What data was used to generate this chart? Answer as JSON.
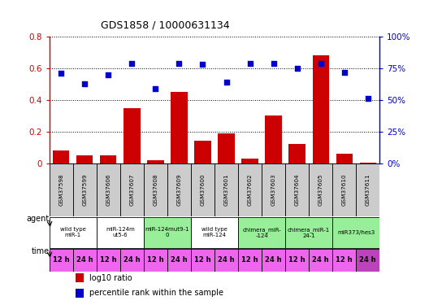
{
  "title": "GDS1858 / 10000631134",
  "samples": [
    "GSM37598",
    "GSM37599",
    "GSM37606",
    "GSM37607",
    "GSM37608",
    "GSM37609",
    "GSM37600",
    "GSM37601",
    "GSM37602",
    "GSM37603",
    "GSM37604",
    "GSM37605",
    "GSM37610",
    "GSM37611"
  ],
  "log10_ratio": [
    0.08,
    0.05,
    0.05,
    0.35,
    0.02,
    0.45,
    0.14,
    0.19,
    0.03,
    0.3,
    0.12,
    0.68,
    0.06,
    0.005
  ],
  "percentile_rank": [
    71,
    63,
    70,
    79,
    59,
    79,
    78,
    64,
    79,
    79,
    75,
    79,
    72,
    51
  ],
  "bar_color": "#cc0000",
  "scatter_color": "#0000cc",
  "ylim_left": [
    0,
    0.8
  ],
  "ylim_right": [
    0,
    100
  ],
  "yticks_left": [
    0.0,
    0.2,
    0.4,
    0.6,
    0.8
  ],
  "yticks_right": [
    0,
    25,
    50,
    75,
    100
  ],
  "yticklabels_left": [
    "0",
    "0.2",
    "0.4",
    "0.6",
    "0.8"
  ],
  "yticklabels_right": [
    "0%",
    "25%",
    "50%",
    "75%",
    "100%"
  ],
  "agent_groups": [
    {
      "label": "wild type\nmiR-1",
      "cols": [
        0,
        1
      ],
      "color": "#ffffff"
    },
    {
      "label": "miR-124m\nut5-6",
      "cols": [
        2,
        3
      ],
      "color": "#ffffff"
    },
    {
      "label": "miR-124mut9-1\n0",
      "cols": [
        4,
        5
      ],
      "color": "#99ee99"
    },
    {
      "label": "wild type\nmiR-124",
      "cols": [
        6,
        7
      ],
      "color": "#ffffff"
    },
    {
      "label": "chimera_miR-\n-124",
      "cols": [
        8,
        9
      ],
      "color": "#99ee99"
    },
    {
      "label": "chimera_miR-1\n24-1",
      "cols": [
        10,
        11
      ],
      "color": "#99ee99"
    },
    {
      "label": "miR373/hes3",
      "cols": [
        12,
        13
      ],
      "color": "#99ee99"
    }
  ],
  "time_labels": [
    "12 h",
    "24 h",
    "12 h",
    "24 h",
    "12 h",
    "24 h",
    "12 h",
    "24 h",
    "12 h",
    "24 h",
    "12 h",
    "24 h",
    "12 h",
    "24 h"
  ],
  "time_color": "#ee66ee",
  "axis_left_color": "#cc0000",
  "axis_right_color": "#0000cc",
  "bg_color": "#ffffff",
  "sample_box_color": "#cccccc",
  "legend_items": [
    {
      "label": "log10 ratio",
      "color": "#cc0000"
    },
    {
      "label": "percentile rank within the sample",
      "color": "#0000cc"
    }
  ]
}
